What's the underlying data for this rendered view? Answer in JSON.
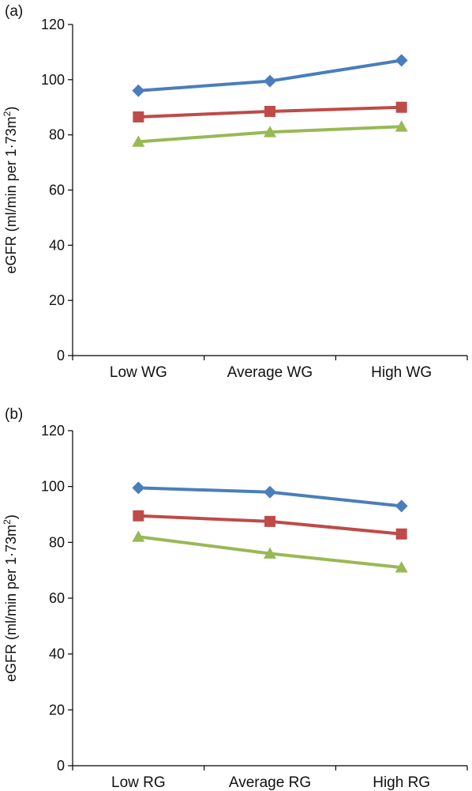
{
  "chart_data": [
    {
      "type": "line",
      "panel_label": "(a)",
      "categories": [
        "Low WG",
        "Average WG",
        "High WG"
      ],
      "ylabel": {
        "main": "eGFR (ml/min per 1·73m",
        "sup": "2",
        "tail": ")"
      },
      "ylim": [
        0,
        120
      ],
      "yticks": [
        0,
        20,
        40,
        60,
        80,
        100,
        120
      ],
      "grid": false,
      "series": [
        {
          "color": "#4a7ebb",
          "marker": "diamond",
          "values": [
            96,
            99.5,
            107
          ]
        },
        {
          "color": "#be4b48",
          "marker": "square",
          "values": [
            86.5,
            88.5,
            90
          ]
        },
        {
          "color": "#98b954",
          "marker": "triangle",
          "values": [
            77.5,
            81,
            83
          ]
        }
      ]
    },
    {
      "type": "line",
      "panel_label": "(b)",
      "categories": [
        "Low RG",
        "Average RG",
        "High RG"
      ],
      "ylabel": {
        "main": "eGFR (ml/min per 1·73m",
        "sup": "2",
        "tail": ")"
      },
      "ylim": [
        0,
        120
      ],
      "yticks": [
        0,
        20,
        40,
        60,
        80,
        100,
        120
      ],
      "grid": false,
      "series": [
        {
          "color": "#4a7ebb",
          "marker": "diamond",
          "values": [
            99.5,
            98,
            93
          ]
        },
        {
          "color": "#be4b48",
          "marker": "square",
          "values": [
            89.5,
            87.5,
            83
          ]
        },
        {
          "color": "#98b954",
          "marker": "triangle",
          "values": [
            82,
            76,
            71
          ]
        }
      ]
    }
  ]
}
